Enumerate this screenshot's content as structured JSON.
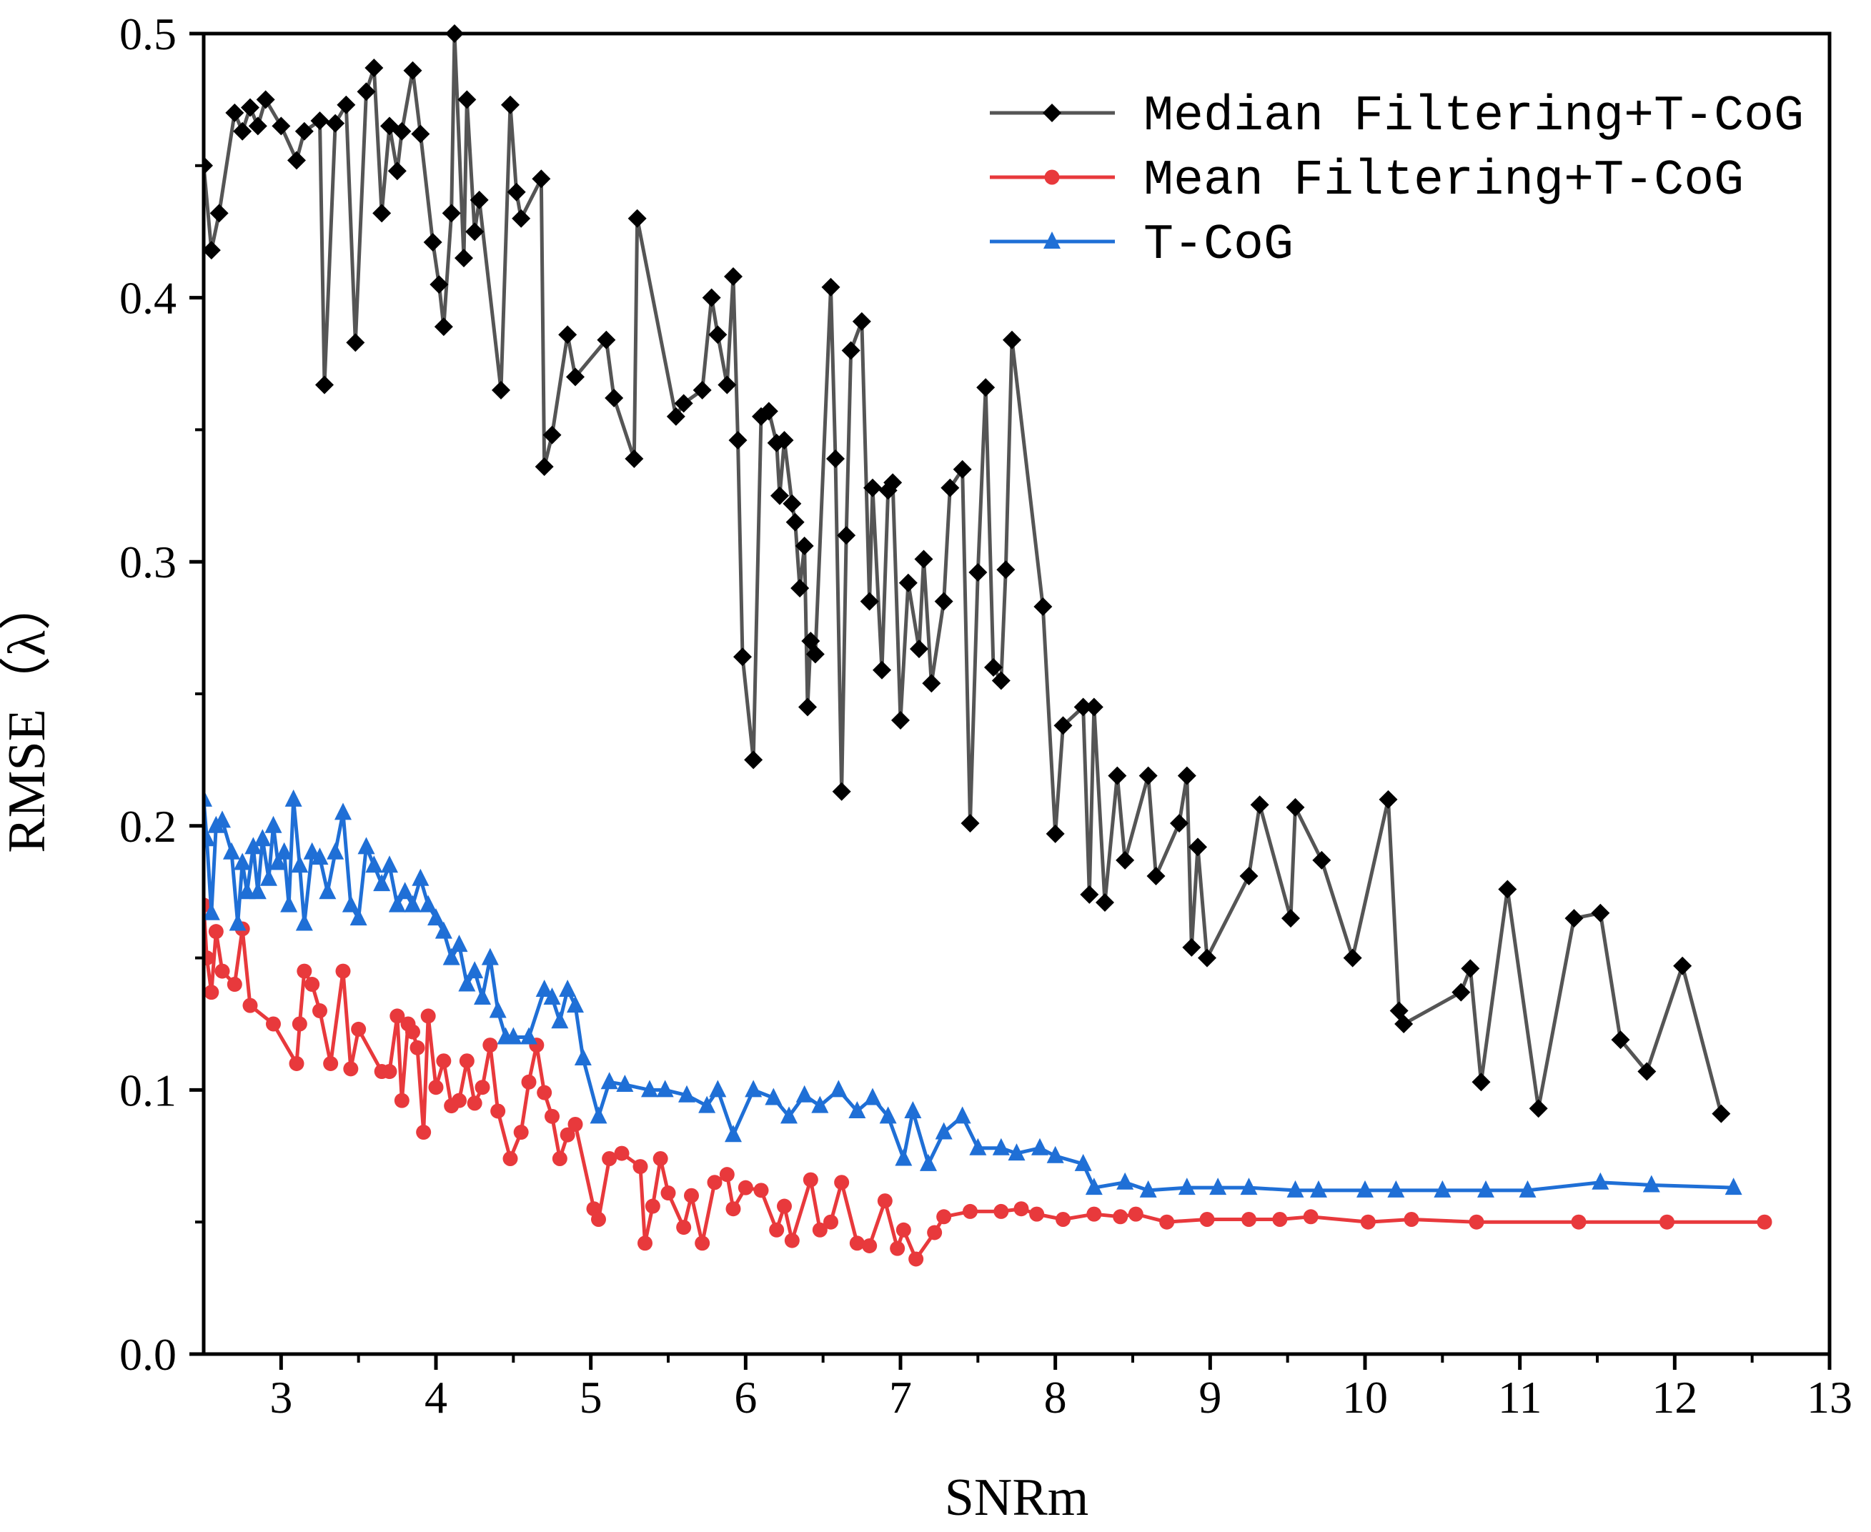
{
  "chart_data": {
    "type": "line",
    "xlabel": "SNRm",
    "ylabel": "RMSE（λ）",
    "xlim": [
      2.5,
      13
    ],
    "ylim": [
      0.0,
      0.5
    ],
    "x_ticks": [
      3,
      4,
      5,
      6,
      7,
      8,
      9,
      10,
      11,
      12,
      13
    ],
    "y_ticks": [
      0.0,
      0.1,
      0.2,
      0.3,
      0.4,
      0.5
    ],
    "x_tick_labels": [
      "3",
      "4",
      "5",
      "6",
      "7",
      "8",
      "9",
      "10",
      "11",
      "12",
      "13"
    ],
    "y_tick_labels": [
      "0.0",
      "0.1",
      "0.2",
      "0.3",
      "0.4",
      "0.5"
    ],
    "legend_position": "top-right",
    "grid": false,
    "series": [
      {
        "name": "Median Filtering+T-CoG",
        "color": "#555555",
        "marker": "diamond",
        "x": [
          2.5,
          2.55,
          2.6,
          2.7,
          2.75,
          2.8,
          2.85,
          2.9,
          3.0,
          3.1,
          3.15,
          3.25,
          3.28,
          3.35,
          3.42,
          3.48,
          3.55,
          3.6,
          3.65,
          3.7,
          3.75,
          3.78,
          3.85,
          3.9,
          3.98,
          4.02,
          4.05,
          4.1,
          4.12,
          4.18,
          4.2,
          4.25,
          4.28,
          4.42,
          4.48,
          4.52,
          4.55,
          4.68,
          4.7,
          4.75,
          4.85,
          4.9,
          5.1,
          5.15,
          5.28,
          5.3,
          5.55,
          5.6,
          5.72,
          5.78,
          5.82,
          5.88,
          5.92,
          5.95,
          5.98,
          6.05,
          6.1,
          6.15,
          6.2,
          6.22,
          6.25,
          6.3,
          6.32,
          6.35,
          6.38,
          6.4,
          6.42,
          6.45,
          6.55,
          6.58,
          6.62,
          6.65,
          6.68,
          6.75,
          6.8,
          6.82,
          6.88,
          6.92,
          6.95,
          7.0,
          7.05,
          7.12,
          7.15,
          7.2,
          7.28,
          7.32,
          7.4,
          7.45,
          7.5,
          7.55,
          7.6,
          7.65,
          7.68,
          7.72,
          7.92,
          8.0,
          8.05,
          8.18,
          8.22,
          8.25,
          8.32,
          8.4,
          8.45,
          8.6,
          8.65,
          8.8,
          8.85,
          8.88,
          8.92,
          8.98,
          9.25,
          9.32,
          9.52,
          9.55,
          9.72,
          9.92,
          10.15,
          10.22,
          10.25,
          10.62,
          10.68,
          10.75,
          10.92,
          11.12,
          11.35,
          11.52,
          11.65,
          11.82,
          12.05,
          12.3
        ],
        "y": [
          0.45,
          0.418,
          0.432,
          0.47,
          0.463,
          0.472,
          0.465,
          0.475,
          0.465,
          0.452,
          0.463,
          0.467,
          0.367,
          0.466,
          0.473,
          0.383,
          0.478,
          0.487,
          0.432,
          0.465,
          0.448,
          0.463,
          0.486,
          0.462,
          0.421,
          0.405,
          0.389,
          0.432,
          0.5,
          0.415,
          0.475,
          0.425,
          0.437,
          0.365,
          0.473,
          0.44,
          0.43,
          0.445,
          0.336,
          0.348,
          0.386,
          0.37,
          0.384,
          0.362,
          0.339,
          0.43,
          0.355,
          0.36,
          0.365,
          0.4,
          0.386,
          0.367,
          0.408,
          0.346,
          0.264,
          0.225,
          0.355,
          0.357,
          0.345,
          0.325,
          0.346,
          0.322,
          0.315,
          0.29,
          0.306,
          0.245,
          0.27,
          0.265,
          0.404,
          0.339,
          0.213,
          0.31,
          0.38,
          0.391,
          0.285,
          0.328,
          0.259,
          0.327,
          0.33,
          0.24,
          0.292,
          0.267,
          0.301,
          0.254,
          0.285,
          0.328,
          0.335,
          0.201,
          0.296,
          0.366,
          0.26,
          0.255,
          0.297,
          0.384,
          0.283,
          0.197,
          0.238,
          0.245,
          0.174,
          0.245,
          0.171,
          0.219,
          0.187,
          0.219,
          0.181,
          0.201,
          0.219,
          0.154,
          0.192,
          0.15,
          0.181,
          0.208,
          0.165,
          0.207,
          0.187,
          0.15,
          0.21,
          0.13,
          0.125,
          0.137,
          0.146,
          0.103,
          0.176,
          0.093,
          0.165,
          0.167,
          0.119,
          0.107,
          0.147,
          0.091
        ]
      },
      {
        "name": "Mean Filtering+T-CoG",
        "color": "#e8393c",
        "marker": "circle",
        "x": [
          2.5,
          2.52,
          2.55,
          2.58,
          2.62,
          2.7,
          2.75,
          2.8,
          2.95,
          3.1,
          3.12,
          3.15,
          3.2,
          3.25,
          3.32,
          3.4,
          3.45,
          3.5,
          3.65,
          3.7,
          3.75,
          3.78,
          3.82,
          3.85,
          3.88,
          3.92,
          3.95,
          4.0,
          4.05,
          4.1,
          4.15,
          4.2,
          4.25,
          4.3,
          4.35,
          4.4,
          4.48,
          4.55,
          4.6,
          4.65,
          4.7,
          4.75,
          4.8,
          4.85,
          4.9,
          5.02,
          5.05,
          5.12,
          5.2,
          5.32,
          5.35,
          5.4,
          5.45,
          5.5,
          5.6,
          5.65,
          5.72,
          5.8,
          5.88,
          5.92,
          6.0,
          6.1,
          6.2,
          6.25,
          6.3,
          6.42,
          6.48,
          6.55,
          6.62,
          6.72,
          6.8,
          6.9,
          6.98,
          7.02,
          7.1,
          7.22,
          7.28,
          7.45,
          7.65,
          7.78,
          7.88,
          8.05,
          8.25,
          8.42,
          8.52,
          8.72,
          8.98,
          9.25,
          9.45,
          9.65,
          10.02,
          10.3,
          10.72,
          11.38,
          11.95,
          12.58
        ],
        "y": [
          0.17,
          0.15,
          0.137,
          0.16,
          0.145,
          0.14,
          0.161,
          0.132,
          0.125,
          0.11,
          0.125,
          0.145,
          0.14,
          0.13,
          0.11,
          0.145,
          0.108,
          0.123,
          0.107,
          0.107,
          0.128,
          0.096,
          0.125,
          0.122,
          0.116,
          0.084,
          0.128,
          0.101,
          0.111,
          0.094,
          0.096,
          0.111,
          0.095,
          0.101,
          0.117,
          0.092,
          0.074,
          0.084,
          0.103,
          0.117,
          0.099,
          0.09,
          0.074,
          0.083,
          0.087,
          0.055,
          0.051,
          0.074,
          0.076,
          0.071,
          0.042,
          0.056,
          0.074,
          0.061,
          0.048,
          0.06,
          0.042,
          0.065,
          0.068,
          0.055,
          0.063,
          0.062,
          0.047,
          0.056,
          0.043,
          0.066,
          0.047,
          0.05,
          0.065,
          0.042,
          0.041,
          0.058,
          0.04,
          0.047,
          0.036,
          0.046,
          0.052,
          0.054,
          0.054,
          0.055,
          0.053,
          0.051,
          0.053,
          0.052,
          0.053,
          0.05,
          0.051,
          0.051,
          0.051,
          0.052,
          0.05,
          0.051,
          0.05,
          0.05,
          0.05,
          0.05
        ]
      },
      {
        "name": "T-CoG",
        "color": "#1f6fd6",
        "marker": "triangle",
        "x": [
          2.5,
          2.52,
          2.55,
          2.58,
          2.62,
          2.68,
          2.72,
          2.75,
          2.78,
          2.82,
          2.85,
          2.88,
          2.92,
          2.95,
          2.98,
          3.02,
          3.05,
          3.08,
          3.12,
          3.15,
          3.2,
          3.25,
          3.3,
          3.35,
          3.4,
          3.45,
          3.5,
          3.55,
          3.6,
          3.65,
          3.7,
          3.75,
          3.8,
          3.85,
          3.9,
          3.95,
          4.0,
          4.05,
          4.1,
          4.15,
          4.2,
          4.25,
          4.3,
          4.35,
          4.4,
          4.45,
          4.5,
          4.6,
          4.7,
          4.75,
          4.8,
          4.85,
          4.9,
          4.95,
          5.05,
          5.12,
          5.22,
          5.38,
          5.48,
          5.62,
          5.75,
          5.82,
          5.92,
          6.05,
          6.18,
          6.28,
          6.38,
          6.48,
          6.6,
          6.72,
          6.82,
          6.92,
          7.02,
          7.08,
          7.18,
          7.28,
          7.4,
          7.5,
          7.65,
          7.75,
          7.9,
          8.0,
          8.18,
          8.25,
          8.45,
          8.6,
          8.85,
          9.05,
          9.25,
          9.55,
          9.7,
          10.0,
          10.2,
          10.5,
          10.78,
          11.05,
          11.52,
          11.85,
          12.38
        ],
        "y": [
          0.21,
          0.195,
          0.167,
          0.2,
          0.202,
          0.19,
          0.163,
          0.186,
          0.175,
          0.192,
          0.175,
          0.195,
          0.18,
          0.2,
          0.186,
          0.19,
          0.17,
          0.21,
          0.185,
          0.163,
          0.19,
          0.188,
          0.175,
          0.19,
          0.205,
          0.17,
          0.165,
          0.192,
          0.185,
          0.178,
          0.185,
          0.17,
          0.175,
          0.17,
          0.18,
          0.17,
          0.165,
          0.16,
          0.15,
          0.155,
          0.14,
          0.145,
          0.135,
          0.15,
          0.13,
          0.12,
          0.12,
          0.12,
          0.138,
          0.135,
          0.126,
          0.138,
          0.132,
          0.112,
          0.09,
          0.103,
          0.102,
          0.1,
          0.1,
          0.098,
          0.094,
          0.1,
          0.083,
          0.1,
          0.097,
          0.09,
          0.098,
          0.094,
          0.1,
          0.092,
          0.097,
          0.09,
          0.074,
          0.092,
          0.072,
          0.084,
          0.09,
          0.078,
          0.078,
          0.076,
          0.078,
          0.075,
          0.072,
          0.063,
          0.065,
          0.062,
          0.063,
          0.063,
          0.063,
          0.062,
          0.062,
          0.062,
          0.062,
          0.062,
          0.062,
          0.062,
          0.065,
          0.064,
          0.063
        ]
      }
    ]
  }
}
